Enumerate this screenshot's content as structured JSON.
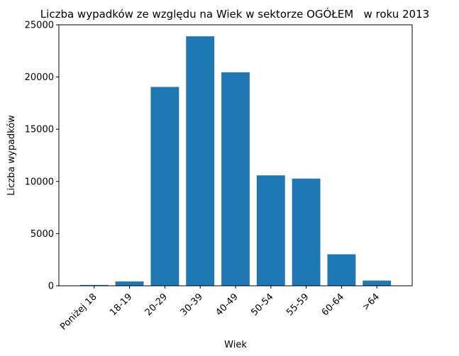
{
  "chart_data": {
    "type": "bar",
    "title": "Liczba wypadków ze względu na Wiek w sektorze OGÓŁEM   w roku 2013",
    "xlabel": "Wiek",
    "ylabel": "Liczba wypadków",
    "categories": [
      "Poniżej 18",
      "18-19",
      "20-29",
      "30-39",
      "40-49",
      "50-54",
      "55-59",
      "60-64",
      ">64"
    ],
    "values": [
      80,
      420,
      19050,
      23900,
      20450,
      10580,
      10270,
      3020,
      500
    ],
    "ylim": [
      0,
      25000
    ],
    "yticks": [
      0,
      5000,
      10000,
      15000,
      20000,
      25000
    ],
    "grid": false,
    "legend": "none",
    "bar_color": "#1f77b4",
    "x_tick_rotation_deg": 45
  }
}
